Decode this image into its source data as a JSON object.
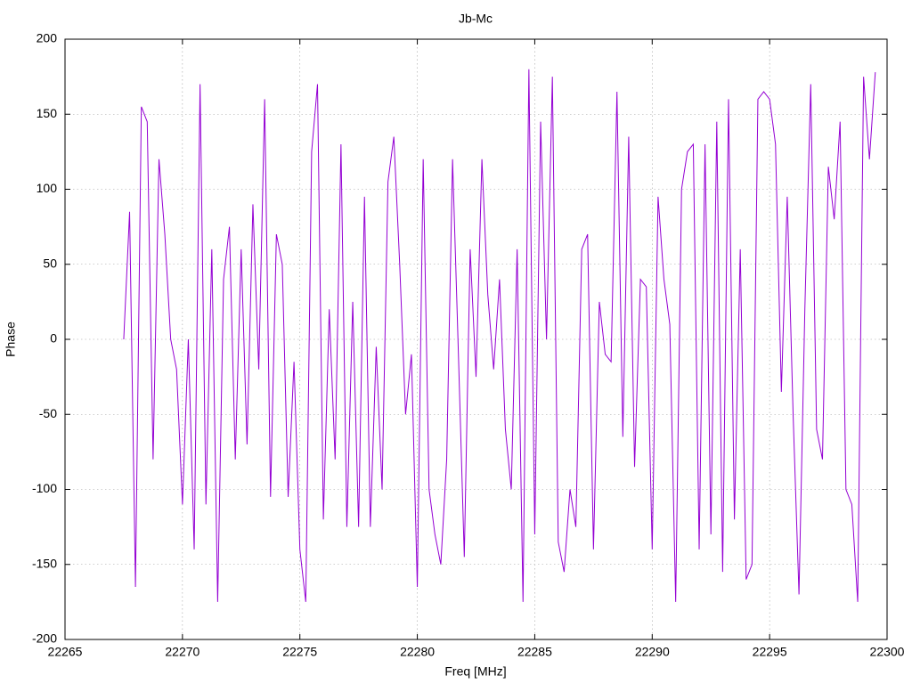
{
  "chart_data": {
    "type": "line",
    "title": "Jb-Mc",
    "xlabel": "Freq [MHz]",
    "ylabel": "Phase",
    "x": [
      22267.5,
      22267.75,
      22268,
      22268.25,
      22268.5,
      22268.75,
      22269,
      22269.25,
      22269.5,
      22269.75,
      22270,
      22270.25,
      22270.5,
      22270.75,
      22271,
      22271.25,
      22271.5,
      22271.75,
      22272,
      22272.25,
      22272.5,
      22272.75,
      22273,
      22273.25,
      22273.5,
      22273.75,
      22274,
      22274.25,
      22274.5,
      22274.75,
      22275,
      22275.25,
      22275.5,
      22275.75,
      22276,
      22276.25,
      22276.5,
      22276.75,
      22277,
      22277.25,
      22277.5,
      22277.75,
      22278,
      22278.25,
      22278.5,
      22278.75,
      22279,
      22279.25,
      22279.5,
      22279.75,
      22280,
      22280.25,
      22280.5,
      22280.75,
      22281,
      22281.25,
      22281.5,
      22281.75,
      22282,
      22282.25,
      22282.5,
      22282.75,
      22283,
      22283.25,
      22283.5,
      22283.75,
      22284,
      22284.25,
      22284.5,
      22284.75,
      22285,
      22285.25,
      22285.5,
      22285.75,
      22286,
      22286.25,
      22286.5,
      22286.75,
      22287,
      22287.25,
      22287.5,
      22287.75,
      22288,
      22288.25,
      22288.5,
      22288.75,
      22289,
      22289.25,
      22289.5,
      22289.75,
      22290,
      22290.25,
      22290.5,
      22290.75,
      22291,
      22291.25,
      22291.5,
      22291.75,
      22292,
      22292.25,
      22292.5,
      22292.75,
      22293,
      22293.25,
      22293.5,
      22293.75,
      22294,
      22294.25,
      22294.5,
      22294.75,
      22295,
      22295.25,
      22295.5,
      22295.75,
      22296,
      22296.25,
      22296.5,
      22296.75,
      22297,
      22297.25,
      22297.5,
      22297.75,
      22298,
      22298.25,
      22298.5,
      22298.75,
      22299,
      22299.25,
      22299.5
    ],
    "series": [
      {
        "name": "Jb-Mc",
        "color": "#9400d3",
        "values": [
          0,
          85,
          -165,
          155,
          145,
          -80,
          120,
          70,
          0,
          -20,
          -110,
          0,
          -140,
          170,
          -110,
          60,
          -175,
          40,
          75,
          -80,
          60,
          -70,
          90,
          -20,
          160,
          -105,
          70,
          50,
          -105,
          -15,
          -140,
          -175,
          125,
          170,
          -120,
          20,
          -80,
          130,
          -125,
          25,
          -125,
          95,
          -125,
          -5,
          -100,
          105,
          135,
          50,
          -50,
          -10,
          -165,
          120,
          -100,
          -130,
          -150,
          -80,
          120,
          -10,
          -145,
          60,
          -25,
          120,
          30,
          -20,
          40,
          -60,
          -100,
          60,
          -175,
          180,
          -130,
          145,
          0,
          175,
          -135,
          -155,
          -100,
          -125,
          60,
          70,
          -140,
          25,
          -10,
          -15,
          165,
          -65,
          135,
          -85,
          40,
          35,
          -140,
          95,
          40,
          10,
          -175,
          100,
          125,
          130,
          -140,
          130,
          -130,
          145,
          -155,
          160,
          -120,
          60,
          -160,
          -150,
          160,
          165,
          160,
          130,
          -35,
          95,
          -50,
          -170,
          20,
          170,
          -60,
          -80,
          115,
          80,
          145,
          -100,
          -110,
          -175,
          175,
          120,
          178
        ]
      }
    ],
    "xlim": [
      22265,
      22300
    ],
    "xticks": [
      22265,
      22270,
      22275,
      22280,
      22285,
      22290,
      22295,
      22300
    ],
    "ylim": [
      -200,
      200
    ],
    "yticks": [
      -200,
      -150,
      -100,
      -50,
      0,
      50,
      100,
      150,
      200
    ],
    "grid": true
  }
}
